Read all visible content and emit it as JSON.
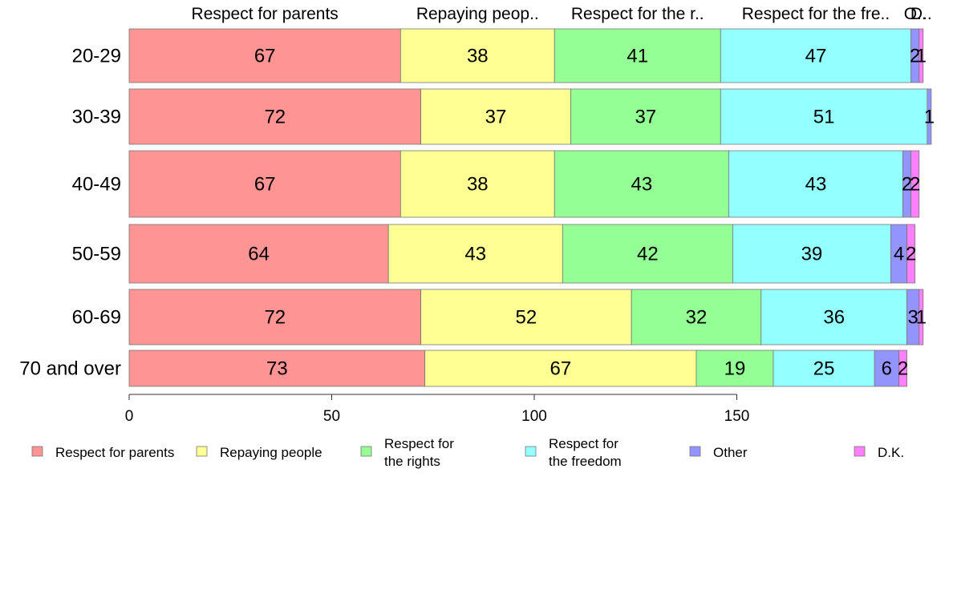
{
  "chart_data": {
    "type": "bar",
    "orientation": "horizontal",
    "stacked": true,
    "categories": [
      "20-29",
      "30-39",
      "40-49",
      "50-59",
      "60-69",
      "70 and over"
    ],
    "series": [
      {
        "name": "Respect for parents",
        "header": "Respect for parents",
        "color": "#FF9494",
        "values": [
          67,
          72,
          67,
          64,
          72,
          73
        ]
      },
      {
        "name": "Repaying people",
        "header": "Repaying peop..",
        "color": "#FFFF94",
        "values": [
          38,
          37,
          38,
          43,
          52,
          67
        ]
      },
      {
        "name": "Respect for the rights",
        "header": "Respect for the r..",
        "legend_lines": [
          "Respect for",
          "the rights"
        ],
        "color": "#94FF94",
        "values": [
          41,
          37,
          43,
          42,
          32,
          19
        ]
      },
      {
        "name": "Respect for the freedom",
        "header": "Respect for the fre..",
        "legend_lines": [
          "Respect for",
          "the freedom"
        ],
        "color": "#94FFFF",
        "values": [
          47,
          51,
          43,
          39,
          36,
          25
        ]
      },
      {
        "name": "Other",
        "header": "O..",
        "color": "#9494FF",
        "values": [
          2,
          1,
          2,
          4,
          3,
          6
        ]
      },
      {
        "name": "D.K.",
        "header": "D..",
        "color": "#FF80FF",
        "values": [
          1,
          0,
          2,
          2,
          1,
          2
        ]
      }
    ],
    "xticks": [
      0,
      50,
      100,
      150
    ],
    "xlim": [
      0,
      194
    ],
    "title": "",
    "xlabel": "",
    "ylabel": "",
    "grid": false,
    "legend_position": "bottom"
  }
}
